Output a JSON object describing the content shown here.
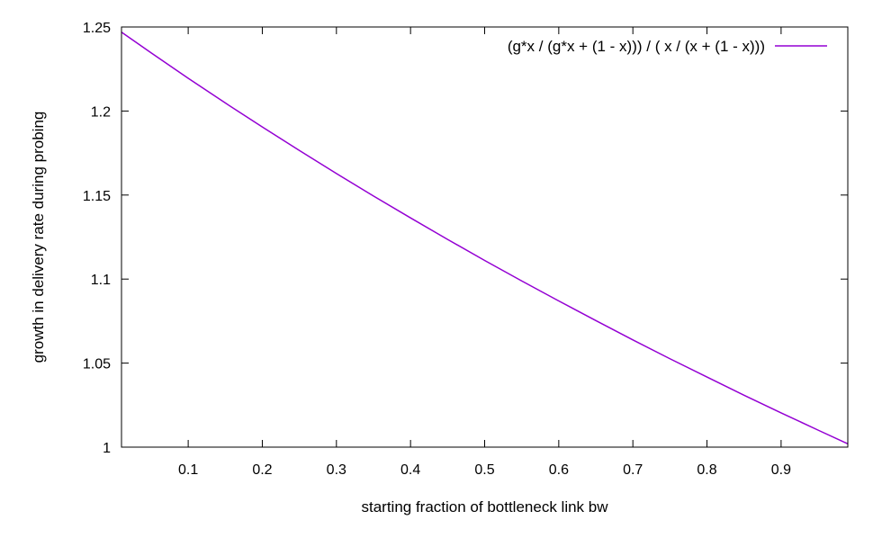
{
  "chart_data": {
    "type": "line",
    "title": "",
    "xlabel": "starting fraction of bottleneck link bw",
    "ylabel": "growth in delivery rate during probing",
    "xlim": [
      0.01,
      0.99
    ],
    "ylim": [
      1.0,
      1.25
    ],
    "grid": false,
    "legend_position": "top-right",
    "x_ticks": [
      {
        "value": 0.1,
        "label": "0.1"
      },
      {
        "value": 0.2,
        "label": "0.2"
      },
      {
        "value": 0.3,
        "label": "0.3"
      },
      {
        "value": 0.4,
        "label": "0.4"
      },
      {
        "value": 0.5,
        "label": "0.5"
      },
      {
        "value": 0.6,
        "label": "0.6"
      },
      {
        "value": 0.7,
        "label": "0.7"
      },
      {
        "value": 0.8,
        "label": "0.8"
      },
      {
        "value": 0.9,
        "label": "0.9"
      }
    ],
    "y_ticks": [
      {
        "value": 1.0,
        "label": "1"
      },
      {
        "value": 1.05,
        "label": "1.05"
      },
      {
        "value": 1.1,
        "label": "1.1"
      },
      {
        "value": 1.15,
        "label": "1.15"
      },
      {
        "value": 1.2,
        "label": "1.2"
      },
      {
        "value": 1.25,
        "label": "1.25"
      }
    ],
    "series": [
      {
        "name": "(g*x / (g*x + (1 - x))) / (  x / (x + (1 - x)))",
        "color": "#9400d3",
        "x": [
          0.01,
          0.05,
          0.1,
          0.15,
          0.2,
          0.25,
          0.3,
          0.35,
          0.4,
          0.45,
          0.5,
          0.55,
          0.6,
          0.65,
          0.7,
          0.75,
          0.8,
          0.85,
          0.9,
          0.95,
          0.99
        ],
        "y": [
          1.2469,
          1.2346,
          1.2195,
          1.2048,
          1.1905,
          1.1765,
          1.1628,
          1.1494,
          1.1364,
          1.1236,
          1.1111,
          1.0989,
          1.087,
          1.0753,
          1.0638,
          1.0526,
          1.0417,
          1.0309,
          1.0204,
          1.0101,
          1.002
        ]
      }
    ]
  }
}
